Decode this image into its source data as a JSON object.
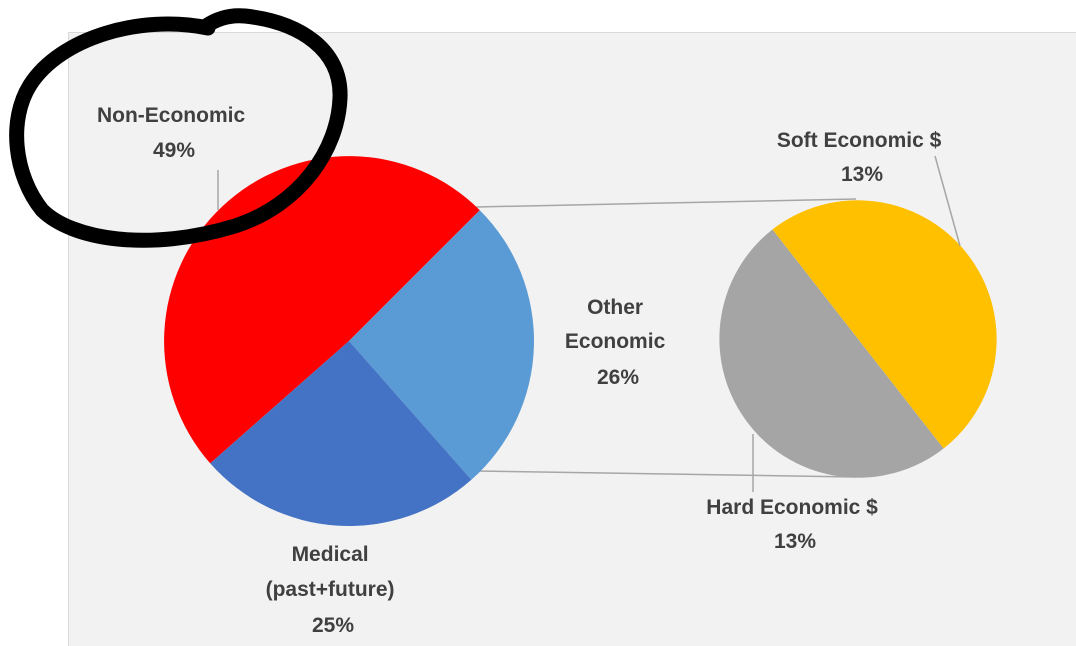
{
  "chart_data": {
    "type": "pie",
    "variant": "bar-of-pie",
    "main_pie": {
      "slices": [
        {
          "label": "Non-Economic",
          "value": 49,
          "display": "49%",
          "color": "#ff0000"
        },
        {
          "label": "Other Economic",
          "value": 26,
          "display": "26%",
          "color": "#5b9bd5"
        },
        {
          "label": "Medical (past+future)",
          "value": 25,
          "display": "25%",
          "color": "#4472c4"
        }
      ]
    },
    "secondary_pie": {
      "source_slice": "Other Economic",
      "slices": [
        {
          "label": "Soft Economic $",
          "value": 13,
          "display": "13%",
          "color": "#ffc000"
        },
        {
          "label": "Hard Economic $",
          "value": 13,
          "display": "13%",
          "color": "#a5a5a5"
        }
      ]
    },
    "labels": {
      "non_economic": {
        "line1": "Non-Economic",
        "line2": "49%"
      },
      "other_economic": {
        "line1": "Other",
        "line2": "Economic",
        "line3": "26%"
      },
      "medical": {
        "line1": "Medical",
        "line2": "(past+future)",
        "line3": "25%"
      },
      "soft_economic": {
        "line1": "Soft Economic $",
        "line2": "13%"
      },
      "hard_economic": {
        "line1": "Hard Economic $",
        "line2": "13%"
      }
    },
    "annotation": {
      "type": "hand-drawn circle",
      "target": "Non-Economic",
      "color": "#000000"
    }
  }
}
